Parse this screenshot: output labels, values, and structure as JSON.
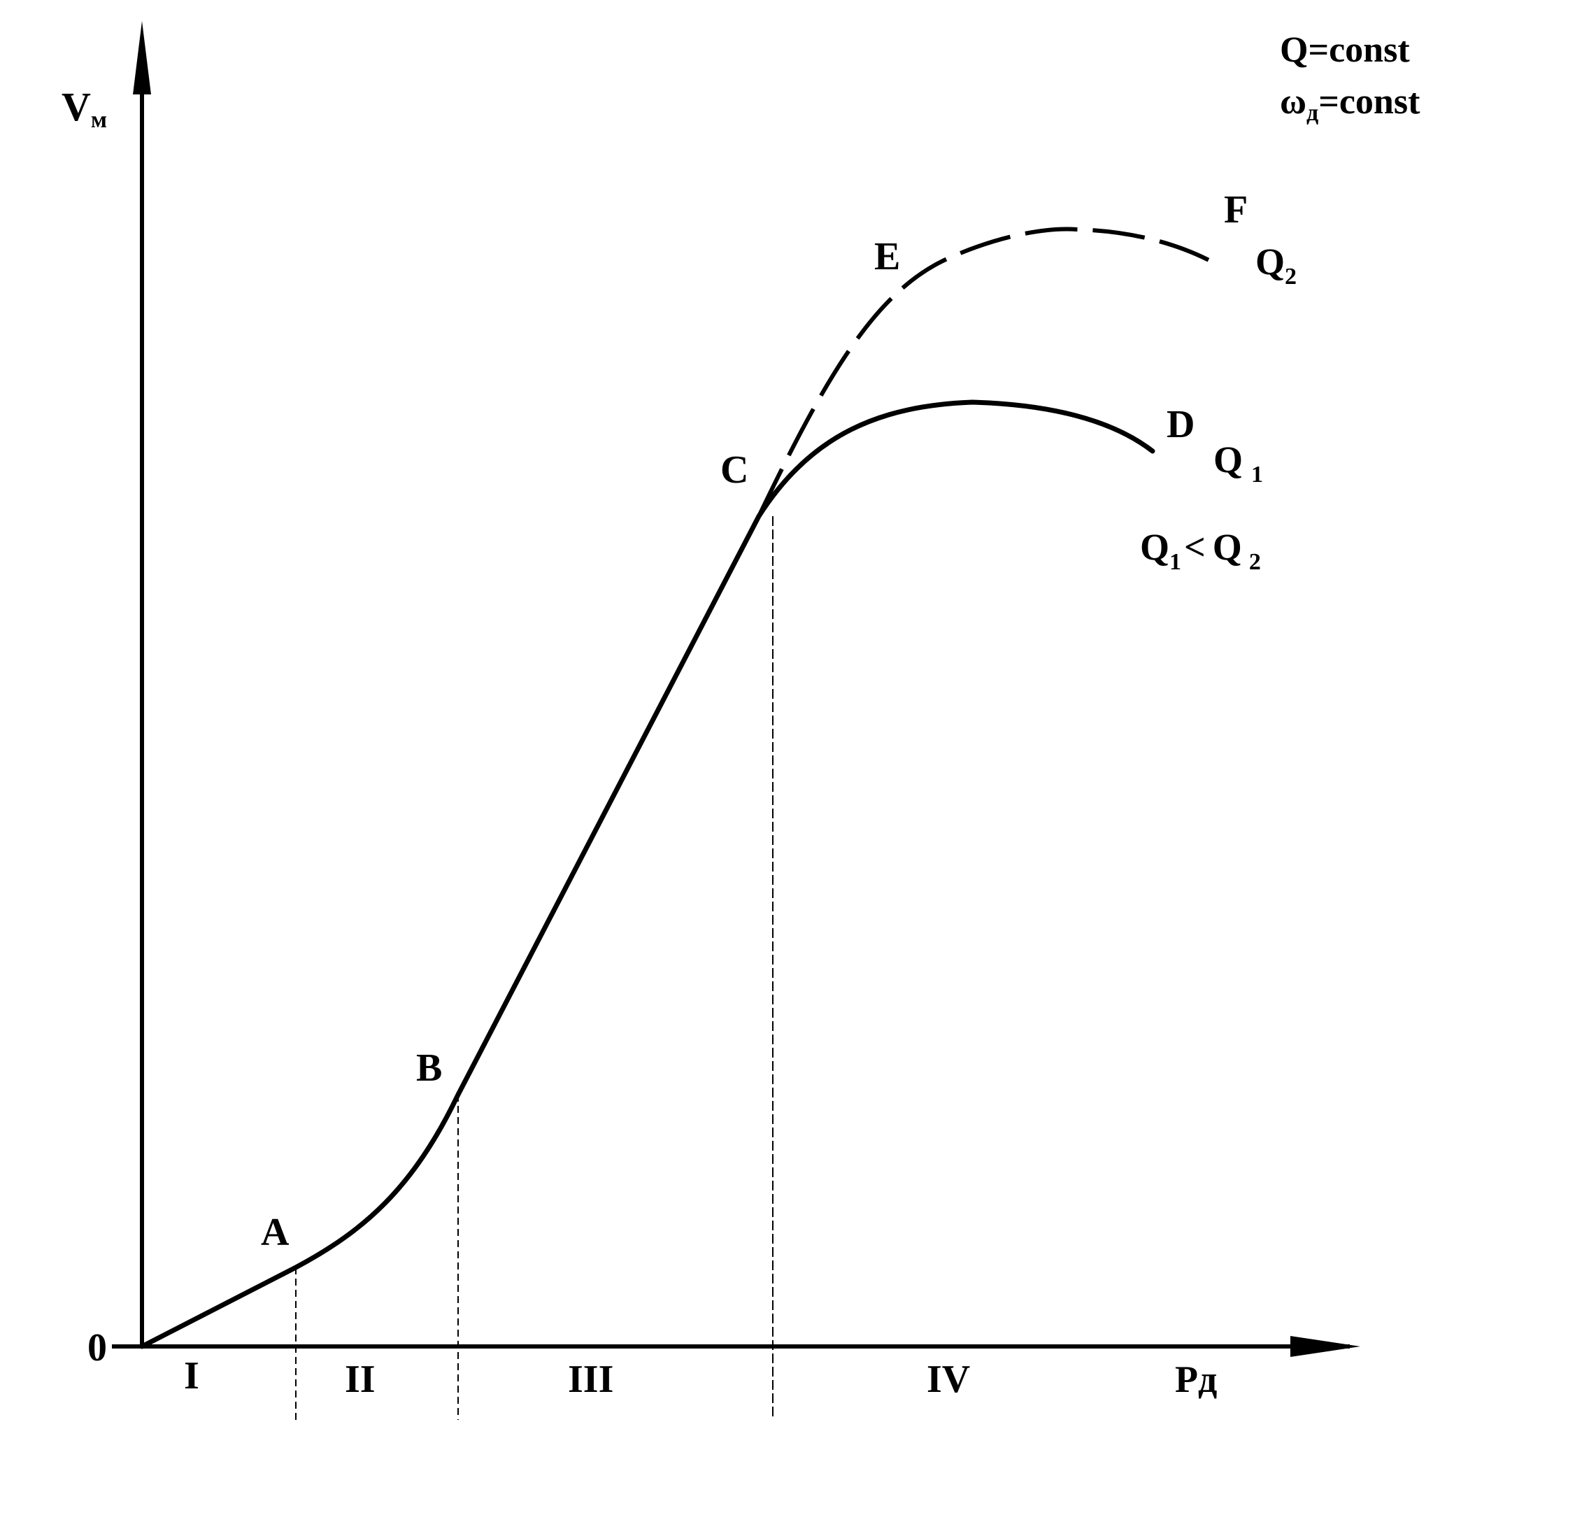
{
  "y_axis_label": {
    "main": "V",
    "sub": "м"
  },
  "x_axis_label": "Pд",
  "origin_label": "0",
  "points": [
    "A",
    "B",
    "C",
    "D",
    "E",
    "F"
  ],
  "zones": [
    "I",
    "II",
    "III",
    "IV"
  ],
  "conditions": [
    {
      "main": "Q=const",
      "sub": ""
    },
    {
      "main": "ω",
      "sub": "д",
      "rest": "=const"
    }
  ],
  "curves": [
    {
      "name": "Q",
      "sub": "2",
      "style": "dashed"
    },
    {
      "name": "Q",
      "sub": "1",
      "style": "solid"
    }
  ],
  "relation": {
    "left": "Q",
    "left_sub": "1",
    "op": "<",
    "right": "Q",
    "right_sub": "2"
  },
  "colors": {
    "ink": "#000000",
    "background": "#ffffff"
  }
}
